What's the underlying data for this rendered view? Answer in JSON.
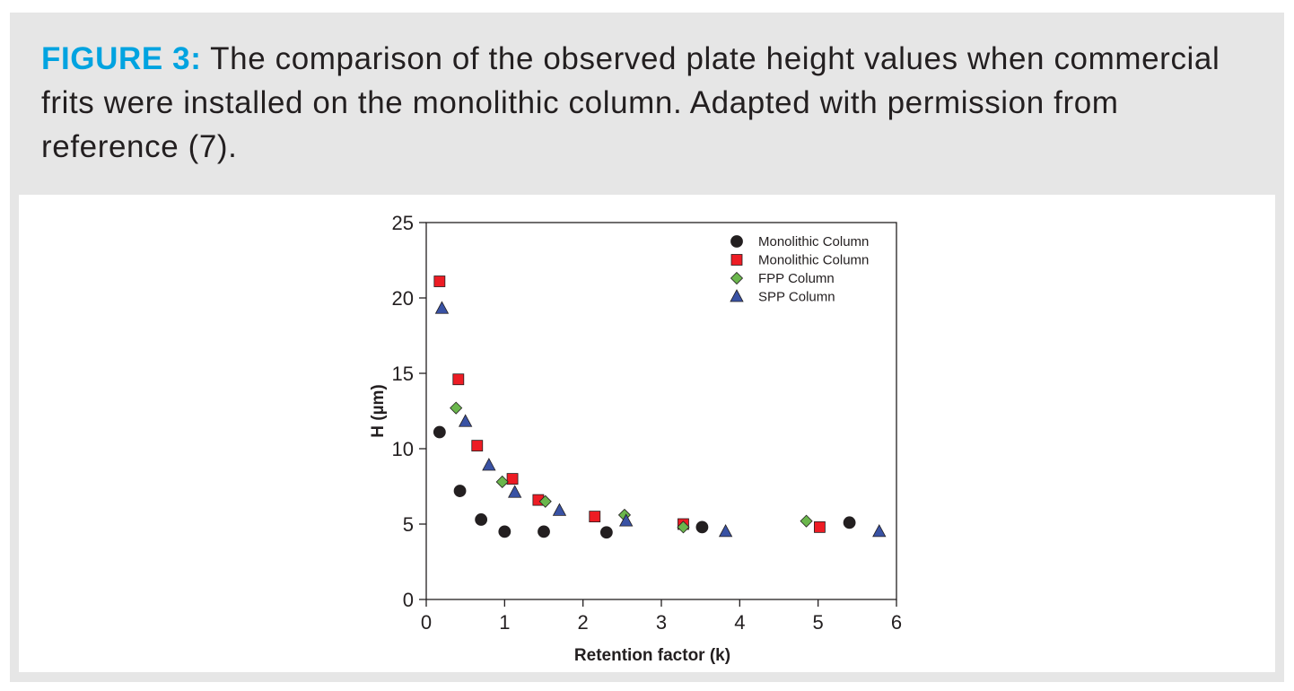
{
  "caption": {
    "label": "FIGURE 3:",
    "text": " The comparison of the observed plate height values when commercial frits were installed on the monolithic column. Adapted with permission from reference (7)."
  },
  "chart_data": {
    "type": "scatter",
    "xlabel": "Retention factor (k)",
    "ylabel": "H (µm)",
    "xlim": [
      0,
      6
    ],
    "ylim": [
      0,
      25
    ],
    "xticks": [
      0,
      1,
      2,
      3,
      4,
      5,
      6
    ],
    "yticks": [
      0,
      5,
      10,
      15,
      20,
      25
    ],
    "legend_position": "top-right",
    "series": [
      {
        "name": "Monolithic Column",
        "marker": "circle",
        "color": "#231f20",
        "points": [
          [
            0.17,
            11.1
          ],
          [
            0.43,
            7.2
          ],
          [
            0.7,
            5.3
          ],
          [
            1.0,
            4.5
          ],
          [
            1.5,
            4.5
          ],
          [
            2.3,
            4.45
          ],
          [
            3.52,
            4.8
          ],
          [
            5.4,
            5.1
          ]
        ]
      },
      {
        "name": "Monolithic Column",
        "marker": "square",
        "color": "#ed1c24",
        "points": [
          [
            0.17,
            21.1
          ],
          [
            0.41,
            14.6
          ],
          [
            0.65,
            10.2
          ],
          [
            1.1,
            8.0
          ],
          [
            1.43,
            6.6
          ],
          [
            2.15,
            5.5
          ],
          [
            3.28,
            5.0
          ],
          [
            5.02,
            4.8
          ]
        ]
      },
      {
        "name": "FPP Column",
        "marker": "diamond",
        "color": "#6ab64c",
        "points": [
          [
            0.38,
            12.7
          ],
          [
            0.97,
            7.8
          ],
          [
            1.52,
            6.5
          ],
          [
            2.53,
            5.6
          ],
          [
            3.28,
            4.8
          ],
          [
            4.85,
            5.2
          ]
        ]
      },
      {
        "name": "SPP Column",
        "marker": "triangle",
        "color": "#3952a4",
        "points": [
          [
            0.2,
            19.3
          ],
          [
            0.5,
            11.8
          ],
          [
            0.8,
            8.9
          ],
          [
            1.13,
            7.1
          ],
          [
            1.7,
            5.9
          ],
          [
            2.55,
            5.2
          ],
          [
            3.82,
            4.5
          ],
          [
            5.78,
            4.5
          ]
        ]
      }
    ]
  }
}
